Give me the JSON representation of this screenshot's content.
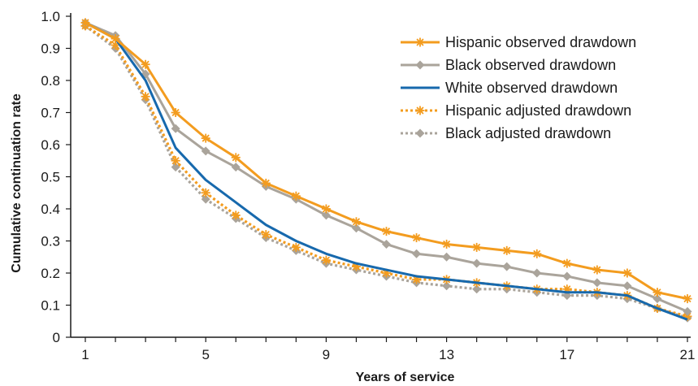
{
  "chart_data": {
    "type": "line",
    "xlabel": "Years of service",
    "ylabel": "Cumulative continuation rate",
    "x": [
      1,
      2,
      3,
      4,
      5,
      6,
      7,
      8,
      9,
      10,
      11,
      12,
      13,
      14,
      15,
      16,
      17,
      18,
      19,
      20,
      21
    ],
    "xlim": [
      1,
      21
    ],
    "ylim": [
      0,
      1.0
    ],
    "x_ticks": [
      "1",
      "5",
      "9",
      "13",
      "17",
      "21"
    ],
    "x_tick_values": [
      1,
      5,
      9,
      13,
      17,
      21
    ],
    "y_ticks": [
      "0",
      "0.1",
      "0.2",
      "0.3",
      "0.4",
      "0.5",
      "0.6",
      "0.7",
      "0.8",
      "0.9",
      "1.0"
    ],
    "y_tick_values": [
      0,
      0.1,
      0.2,
      0.3,
      0.4,
      0.5,
      0.6,
      0.7,
      0.8,
      0.9,
      1.0
    ],
    "grid": false,
    "legend_position": "top-right",
    "series": [
      {
        "name": "Hispanic observed drawdown",
        "color": "#f39c1f",
        "style": "solid",
        "marker": "asterisk",
        "values": [
          0.98,
          0.93,
          0.85,
          0.7,
          0.62,
          0.56,
          0.48,
          0.44,
          0.4,
          0.36,
          0.33,
          0.31,
          0.29,
          0.28,
          0.27,
          0.26,
          0.23,
          0.21,
          0.2,
          0.14,
          0.12
        ]
      },
      {
        "name": "Black observed drawdown",
        "color": "#aaa49b",
        "style": "solid",
        "marker": "diamond",
        "values": [
          0.98,
          0.94,
          0.82,
          0.65,
          0.58,
          0.53,
          0.47,
          0.43,
          0.38,
          0.34,
          0.29,
          0.26,
          0.25,
          0.23,
          0.22,
          0.2,
          0.19,
          0.17,
          0.16,
          0.12,
          0.08
        ]
      },
      {
        "name": "White observed drawdown",
        "color": "#1769ad",
        "style": "solid",
        "marker": "none",
        "values": [
          0.98,
          0.93,
          0.8,
          0.59,
          0.49,
          0.42,
          0.35,
          0.3,
          0.26,
          0.23,
          0.21,
          0.19,
          0.18,
          0.17,
          0.16,
          0.15,
          0.14,
          0.14,
          0.13,
          0.09,
          0.055
        ]
      },
      {
        "name": "Hispanic adjusted drawdown",
        "color": "#f39c1f",
        "style": "dotted",
        "marker": "asterisk",
        "values": [
          0.97,
          0.91,
          0.75,
          0.55,
          0.45,
          0.38,
          0.32,
          0.28,
          0.24,
          0.22,
          0.2,
          0.18,
          0.18,
          0.17,
          0.16,
          0.15,
          0.15,
          0.14,
          0.13,
          0.09,
          0.065
        ]
      },
      {
        "name": "Black adjusted drawdown",
        "color": "#aaa49b",
        "style": "dotted",
        "marker": "diamond",
        "values": [
          0.97,
          0.9,
          0.74,
          0.53,
          0.43,
          0.37,
          0.31,
          0.27,
          0.23,
          0.21,
          0.19,
          0.17,
          0.16,
          0.15,
          0.15,
          0.14,
          0.13,
          0.13,
          0.12,
          0.09,
          0.06
        ]
      }
    ]
  }
}
